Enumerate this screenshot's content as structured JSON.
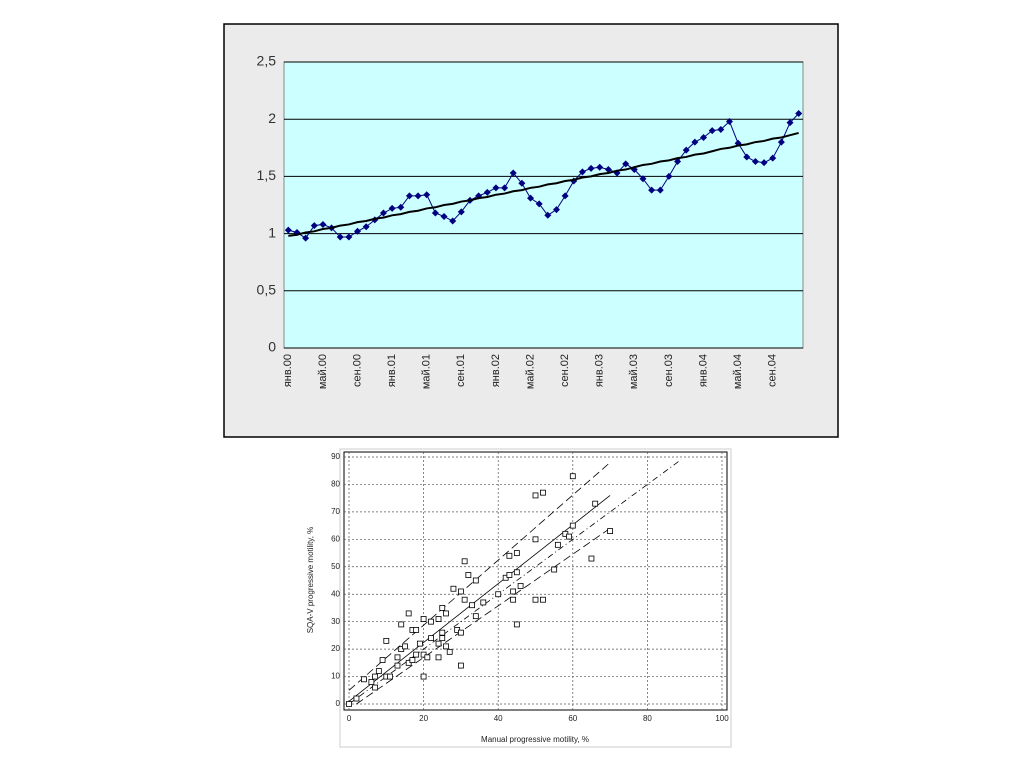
{
  "chart_data": [
    {
      "type": "line",
      "categories": [
        "янв.00",
        null,
        null,
        null,
        "май.00",
        null,
        null,
        null,
        "сен.00",
        null,
        null,
        null,
        "янв.01",
        null,
        null,
        null,
        "май.01",
        null,
        null,
        null,
        "сен.01",
        null,
        null,
        null,
        "янв.02",
        null,
        null,
        null,
        "май.02",
        null,
        null,
        null,
        "сен.02",
        null,
        null,
        null,
        "янв.03",
        null,
        null,
        null,
        "май.03",
        null,
        null,
        null,
        "сен.03",
        null,
        null,
        null,
        "янв.04",
        null,
        null,
        null,
        "май.04",
        null,
        null,
        null,
        "сен.04",
        null,
        null,
        null
      ],
      "series": [
        {
          "color": "#000080",
          "marker": "diamond",
          "values": [
            1.03,
            1.01,
            0.96,
            1.07,
            1.08,
            1.05,
            0.97,
            0.97,
            1.02,
            1.06,
            1.12,
            1.18,
            1.22,
            1.23,
            1.33,
            1.33,
            1.34,
            1.18,
            1.15,
            1.11,
            1.19,
            1.29,
            1.33,
            1.36,
            1.4,
            1.4,
            1.53,
            1.44,
            1.31,
            1.26,
            1.16,
            1.21,
            1.33,
            1.46,
            1.54,
            1.57,
            1.58,
            1.56,
            1.53,
            1.61,
            1.56,
            1.48,
            1.38,
            1.38,
            1.5,
            1.63,
            1.73,
            1.8,
            1.84,
            1.9,
            1.91,
            1.98,
            1.79,
            1.67,
            1.63,
            1.62,
            1.66,
            1.8,
            1.97,
            2.05
          ]
        },
        {
          "color": "#000000",
          "marker": "none",
          "values": [
            0.98,
            0.99,
            1.01,
            1.02,
            1.04,
            1.05,
            1.07,
            1.08,
            1.1,
            1.11,
            1.13,
            1.14,
            1.16,
            1.17,
            1.19,
            1.2,
            1.22,
            1.23,
            1.25,
            1.26,
            1.28,
            1.29,
            1.31,
            1.32,
            1.34,
            1.35,
            1.37,
            1.38,
            1.4,
            1.41,
            1.43,
            1.44,
            1.46,
            1.47,
            1.49,
            1.5,
            1.52,
            1.53,
            1.55,
            1.56,
            1.58,
            1.6,
            1.61,
            1.63,
            1.64,
            1.66,
            1.67,
            1.69,
            1.7,
            1.72,
            1.74,
            1.75,
            1.77,
            1.78,
            1.8,
            1.81,
            1.83,
            1.84,
            1.86,
            1.88
          ]
        }
      ],
      "ylim": [
        0,
        2.5
      ],
      "yticks": [
        0,
        {
          "value": 0.5,
          "label": "0,5"
        },
        1,
        {
          "value": 1.5,
          "label": "1,5"
        },
        2,
        {
          "value": 2.5,
          "label": "2,5"
        }
      ],
      "grid": true
    },
    {
      "type": "scatter",
      "xlabel": "Manual progressive motility, %",
      "ylabel": "SQA-V progressive motility, %",
      "color": "#000000",
      "x": [
        0,
        2,
        4,
        6,
        7,
        7,
        8,
        9,
        10,
        10,
        11,
        13,
        13,
        14,
        14,
        15,
        16,
        16,
        17,
        17,
        18,
        18,
        19,
        20,
        20,
        20,
        21,
        22,
        22,
        24,
        24,
        24,
        25,
        25,
        25,
        26,
        26,
        27,
        28,
        29,
        30,
        30,
        30,
        31,
        31,
        32,
        33,
        34,
        34,
        36,
        40,
        42,
        43,
        43,
        44,
        44,
        45,
        45,
        45,
        46,
        50,
        50,
        50,
        52,
        52,
        55,
        56,
        58,
        59,
        60,
        60,
        65,
        66,
        70
      ],
      "values": [
        0,
        2,
        9,
        8,
        6,
        10,
        12,
        16,
        10,
        23,
        10,
        14,
        17,
        29,
        20,
        21,
        33,
        15,
        27,
        16,
        18,
        27,
        22,
        10,
        18,
        31,
        17,
        24,
        30,
        22,
        17,
        31,
        35,
        26,
        24,
        21,
        33,
        19,
        42,
        27,
        26,
        14,
        41,
        52,
        38,
        47,
        36,
        45,
        32,
        37,
        40,
        46,
        54,
        47,
        38,
        41,
        55,
        48,
        29,
        43,
        60,
        76,
        38,
        77,
        38,
        49,
        58,
        62,
        61,
        65,
        83,
        53,
        73,
        63
      ],
      "lines": [
        {
          "style": "dash-dot",
          "x": [
            0,
            89
          ],
          "y": [
            0,
            89
          ]
        },
        {
          "style": "solid",
          "x": [
            0,
            70
          ],
          "y": [
            1,
            76
          ]
        },
        {
          "style": "dashed",
          "x": [
            0,
            70
          ],
          "y": [
            5,
            88
          ]
        },
        {
          "style": "dashed",
          "x": [
            2,
            70
          ],
          "y": [
            0,
            64
          ]
        }
      ],
      "xlim": [
        0,
        100
      ],
      "xticks": [
        0,
        20,
        40,
        60,
        80,
        100
      ],
      "ylim": [
        0,
        90
      ],
      "yticks": [
        0,
        10,
        20,
        30,
        40,
        50,
        60,
        70,
        80,
        90
      ],
      "grid": true
    }
  ]
}
